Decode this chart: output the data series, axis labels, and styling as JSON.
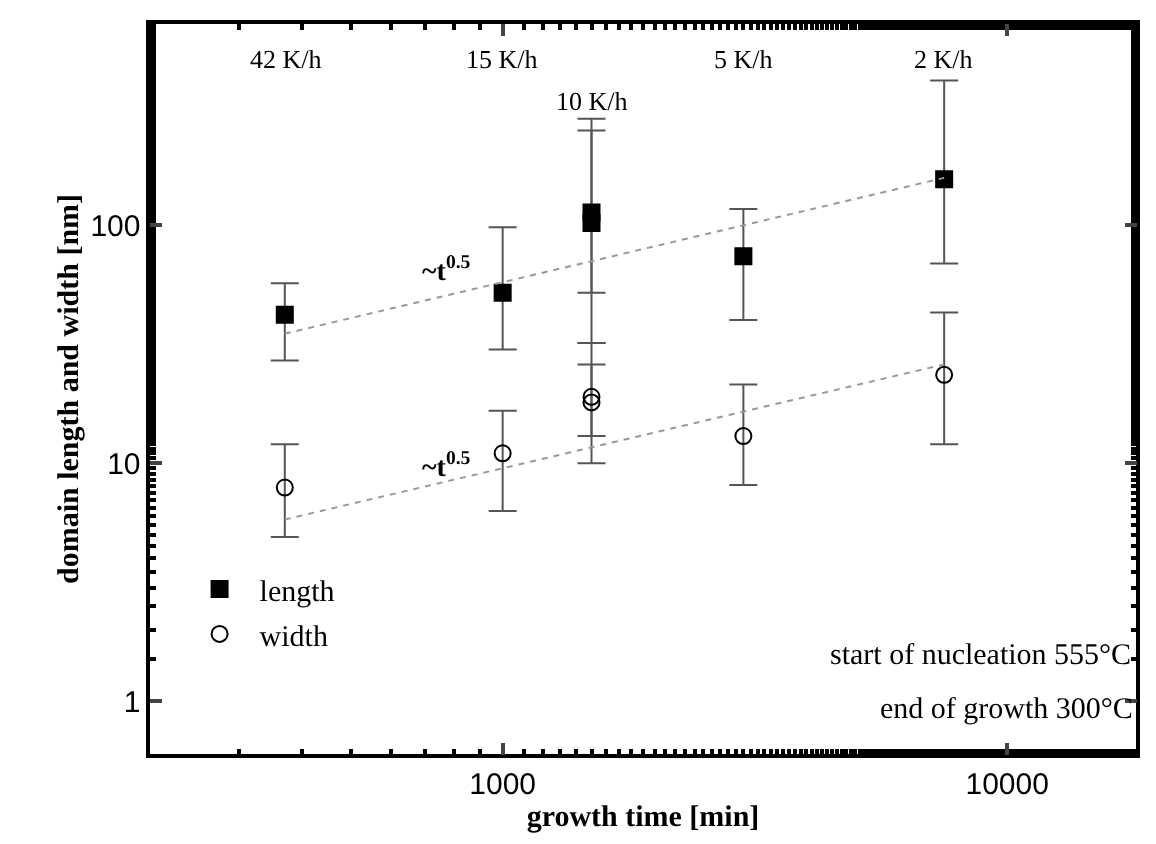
{
  "chart_data": {
    "type": "scatter",
    "xlabel": "growth time [min]",
    "ylabel": "domain length and width [nm]",
    "log": "xy",
    "xlim": [
      200,
      18000
    ],
    "ylim": [
      0.6,
      700
    ],
    "xticks": [
      1000,
      10000
    ],
    "yticks": [
      1,
      10,
      100
    ],
    "grid": false,
    "legend": "bottom left",
    "series": [
      {
        "name": "length",
        "color": "#000000",
        "marker": "square",
        "x": [
          370,
          1000,
          1500,
          1500,
          3000,
          7500
        ],
        "values": [
          42,
          52,
          113,
          102,
          74,
          156
        ],
        "errors": [
          [
            27,
            57
          ],
          [
            30,
            98
          ],
          [
            32,
            280
          ],
          [
            52,
            250
          ],
          [
            40,
            117
          ],
          [
            69,
            405
          ]
        ]
      },
      {
        "name": "width",
        "color": "#000000",
        "marker": "circle",
        "x": [
          370,
          1000,
          1500,
          1500,
          3000,
          7500
        ],
        "values": [
          7.9,
          11,
          19,
          18,
          13,
          23.5
        ],
        "errors": [
          [
            4.9,
            12
          ],
          [
            6.3,
            16.6
          ],
          [
            10,
            32
          ],
          [
            13,
            26
          ],
          [
            8.1,
            21.4
          ],
          [
            12,
            43
          ]
        ]
      },
      {
        "type": "line",
        "color": "#999999",
        "line_style": "dotted",
        "marker": "none",
        "x": [
          370,
          7500
        ],
        "values": [
          35,
          158
        ]
      },
      {
        "type": "line",
        "color": "#999999",
        "line_style": "dotted",
        "marker": "none",
        "x": [
          370,
          7500
        ],
        "values": [
          5.8,
          26
        ]
      }
    ],
    "annotations": [
      "42 K/h",
      "15 K/h",
      "10 K/h",
      "5 K/h",
      "2 K/h",
      "~t$^{0.5}$",
      "~t$^{0.5}$",
      "start of nucleation 555°C",
      "end of growth 300°C"
    ]
  }
}
